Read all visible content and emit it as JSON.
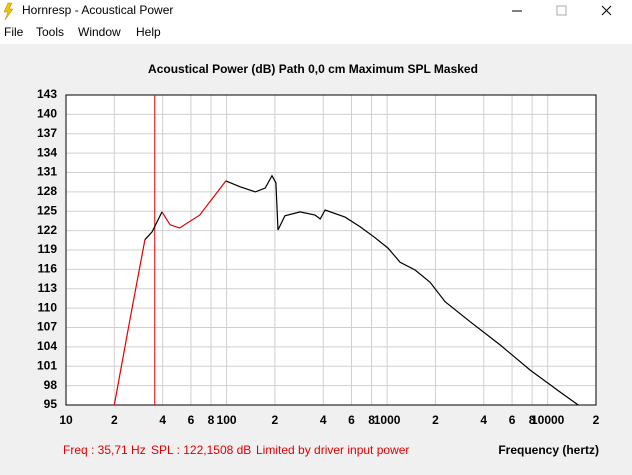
{
  "window": {
    "title": "Hornresp - Acoustical Power",
    "menu": [
      "File",
      "Tools",
      "Window",
      "Help"
    ]
  },
  "chart_data": {
    "type": "line",
    "title": "Acoustical Power (dB)   Path 0,0 cm   Maximum SPL   Masked",
    "xlabel": "Frequency (hertz)",
    "annotations": [
      "Freq : 35,71 Hz",
      "SPL : 122,1508 dB",
      "Limited by driver input power"
    ],
    "log_x": true,
    "grid": true,
    "marker_x": 35.71,
    "marker_color": "#e00000",
    "xlim": [
      10,
      20000
    ],
    "ylim": [
      95,
      143
    ],
    "xticks": [
      10,
      {
        "value": 20,
        "label": "2"
      },
      {
        "value": 40,
        "label": "4"
      },
      {
        "value": 60,
        "label": "6"
      },
      {
        "value": 80,
        "label": "8"
      },
      100,
      {
        "value": 200,
        "label": "2"
      },
      {
        "value": 400,
        "label": "4"
      },
      {
        "value": 600,
        "label": "6"
      },
      {
        "value": 800,
        "label": "8"
      },
      1000,
      {
        "value": 2000,
        "label": "2"
      },
      {
        "value": 4000,
        "label": "4"
      },
      {
        "value": 6000,
        "label": "6"
      },
      {
        "value": 8000,
        "label": "8"
      },
      10000,
      {
        "value": 20000,
        "label": "2"
      }
    ],
    "yticks": [
      95,
      98,
      101,
      104,
      107,
      110,
      113,
      116,
      119,
      122,
      125,
      128,
      131,
      134,
      137,
      140,
      143
    ],
    "x": [
      20,
      25,
      31,
      34.4,
      39.6,
      44.5,
      51,
      68,
      99,
      121,
      151,
      174,
      192,
      203,
      209,
      231,
      287,
      356,
      383,
      411,
      547,
      679,
      841,
      1013,
      1205,
      1494,
      1852,
      2296,
      3289,
      5058,
      7780,
      11970,
      15500
    ],
    "series": [
      {
        "color": "#e00000",
        "values": [
          95,
          108.2,
          120.6,
          null,
          124.9,
          122.9,
          122.4,
          124.4,
          129.7,
          null,
          null,
          null,
          null,
          null,
          null,
          null,
          null,
          null,
          null,
          null,
          null,
          null,
          null,
          null,
          null,
          null,
          null,
          null,
          null,
          null,
          null,
          null,
          null
        ]
      },
      {
        "color": "#000000",
        "values": [
          null,
          null,
          120.6,
          121.8,
          124.9,
          null,
          null,
          null,
          129.7,
          128.8,
          128,
          128.6,
          130.5,
          129.4,
          122.1,
          124.3,
          124.9,
          124.4,
          123.8,
          125.2,
          124.1,
          122.6,
          120.9,
          119.3,
          117.1,
          115.9,
          114,
          111,
          107.9,
          104.3,
          100.4,
          97,
          95
        ]
      }
    ]
  }
}
